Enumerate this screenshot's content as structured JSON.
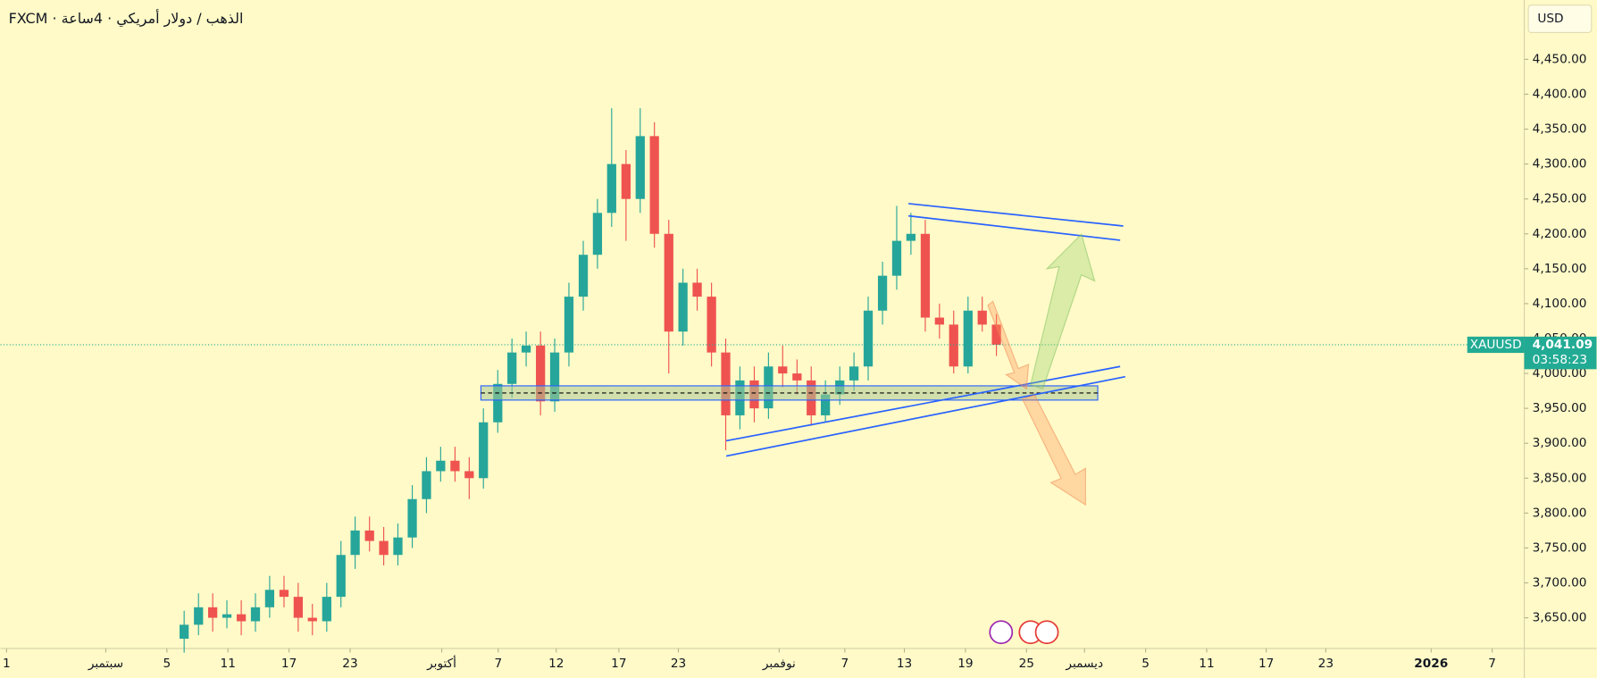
{
  "chart_data": {
    "type": "candlestick",
    "title": "FXCM · الذهب / دولار أمريكي · 4ساعة",
    "currency": "USD",
    "up_color": "#26a69a",
    "down_color": "#ef5350",
    "x": [
      5.13,
      6.07,
      7.0,
      7.93,
      8.87,
      9.8,
      10.73,
      11.67,
      12.6,
      13.53,
      14.47,
      15.4,
      16.33,
      17.27,
      18.2,
      19.13,
      20.07,
      21.0,
      21.93,
      22.87,
      23.8,
      24.73,
      25.67,
      26.6,
      27.53,
      28.47,
      29.4,
      30.33,
      31.27,
      32.2,
      33.13,
      34.07,
      35.0,
      35.93,
      36.87,
      37.8,
      38.73,
      39.67,
      40.6,
      41.53,
      42.47,
      43.4,
      44.33,
      45.27,
      46.2,
      47.13,
      48.07,
      49.0,
      49.93,
      50.87,
      51.8,
      52.73,
      53.67,
      54.6,
      55.53,
      56.47,
      57.4,
      58.33
    ],
    "open": [
      3620,
      3640,
      3665,
      3650,
      3655,
      3645,
      3665,
      3690,
      3680,
      3650,
      3645,
      3680,
      3740,
      3775,
      3760,
      3740,
      3765,
      3820,
      3860,
      3875,
      3860,
      3850,
      3930,
      3985,
      4030,
      4040,
      3960,
      4030,
      4110,
      4170,
      4230,
      4300,
      4250,
      4340,
      4200,
      4060,
      4130,
      4110,
      4030,
      3940,
      3990,
      3950,
      4010,
      4000,
      3990,
      3940,
      3970,
      3990,
      4010,
      4090,
      4140,
      4190,
      4200,
      4080,
      4070,
      4010,
      4090,
      4070
    ],
    "high": [
      3660,
      3685,
      3685,
      3675,
      3675,
      3685,
      3710,
      3710,
      3700,
      3670,
      3700,
      3760,
      3795,
      3795,
      3780,
      3785,
      3840,
      3880,
      3895,
      3895,
      3880,
      3950,
      4005,
      4050,
      4060,
      4060,
      4050,
      4130,
      4190,
      4250,
      4380,
      4320,
      4380,
      4360,
      4220,
      4150,
      4150,
      4130,
      4050,
      4010,
      4010,
      4030,
      4040,
      4020,
      4010,
      3990,
      4010,
      4030,
      4110,
      4160,
      4240,
      4230,
      4220,
      4100,
      4090,
      4110,
      4110,
      4085
    ],
    "low": [
      3600,
      3625,
      3630,
      3635,
      3625,
      3630,
      3650,
      3665,
      3630,
      3625,
      3630,
      3665,
      3720,
      3745,
      3725,
      3725,
      3750,
      3800,
      3845,
      3845,
      3820,
      3835,
      3915,
      3965,
      4010,
      3940,
      3945,
      4010,
      4090,
      4150,
      4210,
      4190,
      4230,
      4180,
      4000,
      4040,
      4090,
      4010,
      3890,
      3920,
      3930,
      3935,
      3980,
      3970,
      3925,
      3930,
      3955,
      3975,
      3990,
      4070,
      4120,
      4170,
      4060,
      4050,
      4000,
      4000,
      4060,
      4025
    ],
    "close": [
      3640,
      3665,
      3650,
      3655,
      3645,
      3665,
      3690,
      3680,
      3650,
      3645,
      3680,
      3740,
      3775,
      3760,
      3740,
      3765,
      3820,
      3860,
      3875,
      3860,
      3850,
      3930,
      3985,
      4030,
      4040,
      3960,
      4030,
      4110,
      4170,
      4230,
      4300,
      4250,
      4340,
      4200,
      4060,
      4130,
      4110,
      4030,
      3940,
      3990,
      3950,
      4010,
      4000,
      3990,
      3940,
      3970,
      3990,
      4010,
      4090,
      4140,
      4190,
      4200,
      4080,
      4070,
      4010,
      4090,
      4070,
      4041.09
    ],
    "xlim": [
      -6.9,
      92.9
    ],
    "xticks": [
      {
        "value": -6.5,
        "label": "1"
      },
      {
        "value": 0,
        "label": "سبتمبر"
      },
      {
        "value": 4,
        "label": "5"
      },
      {
        "value": 8,
        "label": "11"
      },
      {
        "value": 12,
        "label": "17"
      },
      {
        "value": 16,
        "label": "23"
      },
      {
        "value": 22,
        "label": "أكتوبر"
      },
      {
        "value": 25.7,
        "label": "7"
      },
      {
        "value": 29.5,
        "label": "12"
      },
      {
        "value": 33.6,
        "label": "17"
      },
      {
        "value": 37.5,
        "label": "23"
      },
      {
        "value": 44.1,
        "label": "نوفمبر"
      },
      {
        "value": 48.4,
        "label": "7"
      },
      {
        "value": 52.3,
        "label": "13"
      },
      {
        "value": 56.3,
        "label": "19"
      },
      {
        "value": 60.3,
        "label": "25"
      },
      {
        "value": 64.1,
        "label": "ديسمبر"
      },
      {
        "value": 68.1,
        "label": "5"
      },
      {
        "value": 72.1,
        "label": "11"
      },
      {
        "value": 76,
        "label": "17"
      },
      {
        "value": 79.9,
        "label": "23"
      },
      {
        "value": 86.8,
        "label": "2026"
      },
      {
        "value": 90.8,
        "label": "7"
      }
    ],
    "ylim": [
      3606,
      4535
    ],
    "yticks": [
      {
        "value": 3650,
        "label": "3,650.00"
      },
      {
        "value": 3700,
        "label": "3,700.00"
      },
      {
        "value": 3750,
        "label": "3,750.00"
      },
      {
        "value": 3800,
        "label": "3,800.00"
      },
      {
        "value": 3850,
        "label": "3,850.00"
      },
      {
        "value": 3900,
        "label": "3,900.00"
      },
      {
        "value": 3950,
        "label": "3,950.00"
      },
      {
        "value": 4000,
        "label": "4,000.00"
      },
      {
        "value": 4050,
        "label": "4,050.00"
      },
      {
        "value": 4100,
        "label": "4,100.00"
      },
      {
        "value": 4150,
        "label": "4,150.00"
      },
      {
        "value": 4200,
        "label": "4,200.00"
      },
      {
        "value": 4250,
        "label": "4,250.00"
      },
      {
        "value": 4300,
        "label": "4,300.00"
      },
      {
        "value": 4350,
        "label": "4,350.00"
      },
      {
        "value": 4400,
        "label": "4,400.00"
      },
      {
        "value": 4450,
        "label": "4,450.00"
      }
    ],
    "last": {
      "symbol": "XAUUSD",
      "value": 4041.09,
      "label": "4,041.09",
      "countdown": "03:58:23",
      "color": "#22ab94"
    }
  }
}
